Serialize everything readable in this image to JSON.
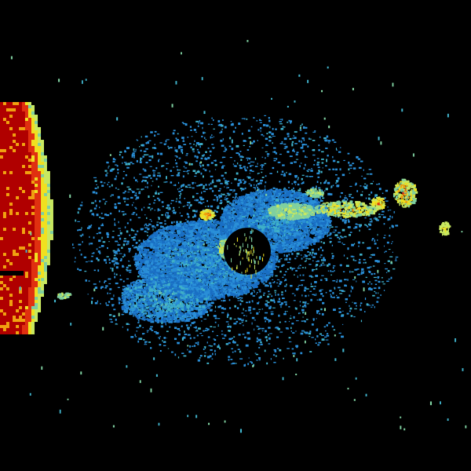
{
  "image": {
    "kind": "weather radar reflectivity",
    "background_color": "#000000",
    "palette": [
      "#1a6fc4",
      "#2a8fd8",
      "#3fb0c8",
      "#7fd0a0",
      "#c8e860",
      "#f0e020",
      "#f0a010",
      "#e03010",
      "#b00000"
    ]
  }
}
